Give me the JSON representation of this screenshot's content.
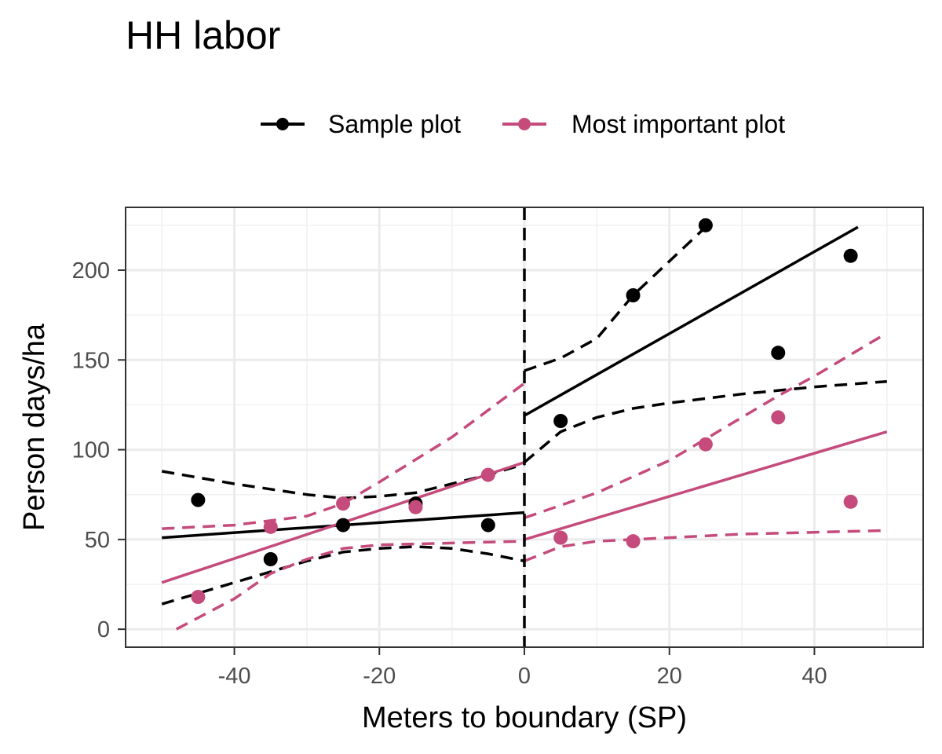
{
  "chart_data": {
    "type": "scatter",
    "title": "HH labor",
    "xlabel": "Meters to boundary (SP)",
    "ylabel": "Person days/ha",
    "xlim": [
      -55,
      55
    ],
    "ylim": [
      -10,
      235
    ],
    "x_ticks": [
      -40,
      -20,
      0,
      20,
      40
    ],
    "y_ticks": [
      0,
      50,
      100,
      150,
      200
    ],
    "x_tick_labels": [
      "-40",
      "-20",
      "0",
      "20",
      "40"
    ],
    "y_tick_labels": [
      "0",
      "50",
      "100",
      "150",
      "200"
    ],
    "grid": true,
    "legend_position": "top",
    "cutoff": 0,
    "series": [
      {
        "name": "Sample plot",
        "color": "#000000",
        "points": [
          {
            "x": -45,
            "y": 72
          },
          {
            "x": -35,
            "y": 39
          },
          {
            "x": -25,
            "y": 58
          },
          {
            "x": -15,
            "y": 70
          },
          {
            "x": -5,
            "y": 58
          },
          {
            "x": 5,
            "y": 116
          },
          {
            "x": 15,
            "y": 186
          },
          {
            "x": 25,
            "y": 225
          },
          {
            "x": 35,
            "y": 154
          },
          {
            "x": 45,
            "y": 208
          }
        ],
        "fit_left": [
          [
            -50,
            51
          ],
          [
            0,
            65
          ]
        ],
        "fit_right": [
          [
            0,
            119
          ],
          [
            46,
            224
          ]
        ],
        "ci_upper_left": [
          [
            -50,
            88
          ],
          [
            -40,
            81
          ],
          [
            -30,
            75
          ],
          [
            -25,
            73
          ],
          [
            -20,
            74
          ],
          [
            -15,
            76
          ],
          [
            -10,
            81
          ],
          [
            -5,
            86
          ],
          [
            0,
            92
          ]
        ],
        "ci_lower_left": [
          [
            -50,
            14
          ],
          [
            -40,
            26
          ],
          [
            -30,
            38
          ],
          [
            -25,
            43
          ],
          [
            -20,
            45
          ],
          [
            -15,
            46
          ],
          [
            -10,
            45
          ],
          [
            -5,
            42
          ],
          [
            0,
            38
          ]
        ],
        "ci_upper_right": [
          [
            0,
            144
          ],
          [
            5,
            151
          ],
          [
            10,
            162
          ],
          [
            15,
            186
          ],
          [
            20,
            205
          ],
          [
            25,
            224
          ]
        ],
        "ci_lower_right": [
          [
            0,
            93
          ],
          [
            5,
            110
          ],
          [
            10,
            118
          ],
          [
            15,
            123
          ],
          [
            20,
            126
          ],
          [
            30,
            131
          ],
          [
            40,
            135
          ],
          [
            50,
            138
          ]
        ]
      },
      {
        "name": "Most important plot",
        "color": "#c44b7b",
        "points": [
          {
            "x": -45,
            "y": 18
          },
          {
            "x": -35,
            "y": 57
          },
          {
            "x": -25,
            "y": 70
          },
          {
            "x": -15,
            "y": 68
          },
          {
            "x": -5,
            "y": 86
          },
          {
            "x": 5,
            "y": 51
          },
          {
            "x": 15,
            "y": 49
          },
          {
            "x": 25,
            "y": 103
          },
          {
            "x": 35,
            "y": 118
          },
          {
            "x": 45,
            "y": 71
          }
        ],
        "fit_left": [
          [
            -50,
            26
          ],
          [
            0,
            93
          ]
        ],
        "fit_right": [
          [
            0,
            50
          ],
          [
            50,
            110
          ]
        ],
        "ci_upper_left": [
          [
            -50,
            56
          ],
          [
            -40,
            58
          ],
          [
            -30,
            63
          ],
          [
            -25,
            70
          ],
          [
            -20,
            82
          ],
          [
            -10,
            107
          ],
          [
            0,
            137
          ]
        ],
        "ci_lower_left": [
          [
            -48,
            0
          ],
          [
            -40,
            17
          ],
          [
            -35,
            31
          ],
          [
            -30,
            39
          ],
          [
            -25,
            45
          ],
          [
            -20,
            47
          ],
          [
            -10,
            48
          ],
          [
            0,
            49
          ]
        ],
        "ci_upper_right": [
          [
            0,
            62
          ],
          [
            10,
            76
          ],
          [
            20,
            94
          ],
          [
            25,
            106
          ],
          [
            30,
            118
          ],
          [
            35,
            130
          ],
          [
            40,
            141
          ],
          [
            50,
            165
          ]
        ],
        "ci_lower_right": [
          [
            0,
            38
          ],
          [
            5,
            46
          ],
          [
            10,
            49
          ],
          [
            20,
            51
          ],
          [
            30,
            53
          ],
          [
            40,
            54
          ],
          [
            50,
            55
          ]
        ]
      }
    ]
  }
}
